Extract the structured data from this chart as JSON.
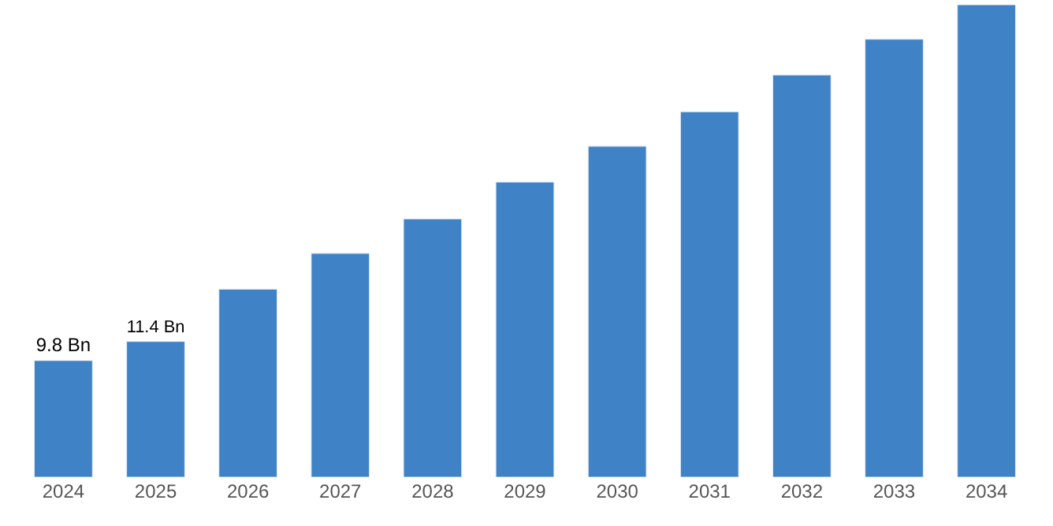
{
  "chart_data": {
    "type": "bar",
    "categories": [
      "2024",
      "2025",
      "2026",
      "2027",
      "2028",
      "2029",
      "2030",
      "2031",
      "2032",
      "2033",
      "2034"
    ],
    "values": [
      9.8,
      11.4,
      15.8,
      18.8,
      21.7,
      24.8,
      27.8,
      30.7,
      33.8,
      36.8,
      39.7
    ],
    "value_labels": [
      "9.8 Bn",
      "11.4 Bn",
      null,
      null,
      null,
      null,
      null,
      null,
      null,
      null,
      null
    ],
    "color": "#3f82c6"
  }
}
